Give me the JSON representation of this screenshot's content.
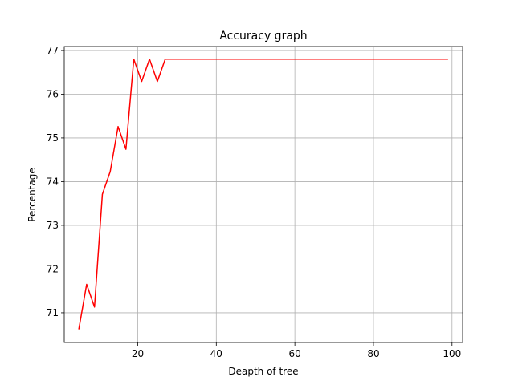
{
  "chart_data": {
    "type": "line",
    "title": "Accuracy graph",
    "xlabel": "Deapth of tree",
    "ylabel": "Percentage",
    "xlim": [
      1.3,
      102.7
    ],
    "ylim": [
      70.32,
      77.09
    ],
    "xticks": [
      20,
      40,
      60,
      80,
      100
    ],
    "yticks": [
      71,
      72,
      73,
      74,
      75,
      76,
      77
    ],
    "grid": true,
    "legend": "none",
    "series": [
      {
        "color": "#ff0000",
        "x": [
          5,
          7,
          9,
          11,
          13,
          15,
          17,
          19,
          21,
          23,
          25,
          27,
          29,
          31,
          33,
          35,
          37,
          39,
          41,
          43,
          45,
          47,
          49,
          51,
          53,
          55,
          57,
          59,
          61,
          63,
          65,
          67,
          69,
          71,
          73,
          75,
          77,
          79,
          81,
          83,
          85,
          87,
          89,
          91,
          93,
          95,
          97,
          99
        ],
        "y": [
          70.62,
          71.65,
          71.13,
          73.71,
          74.23,
          75.26,
          74.74,
          76.8,
          76.29,
          76.8,
          76.29,
          76.8,
          76.8,
          76.8,
          76.8,
          76.8,
          76.8,
          76.8,
          76.8,
          76.8,
          76.8,
          76.8,
          76.8,
          76.8,
          76.8,
          76.8,
          76.8,
          76.8,
          76.8,
          76.8,
          76.8,
          76.8,
          76.8,
          76.8,
          76.8,
          76.8,
          76.8,
          76.8,
          76.8,
          76.8,
          76.8,
          76.8,
          76.8,
          76.8,
          76.8,
          76.8,
          76.8,
          76.8
        ]
      }
    ]
  }
}
